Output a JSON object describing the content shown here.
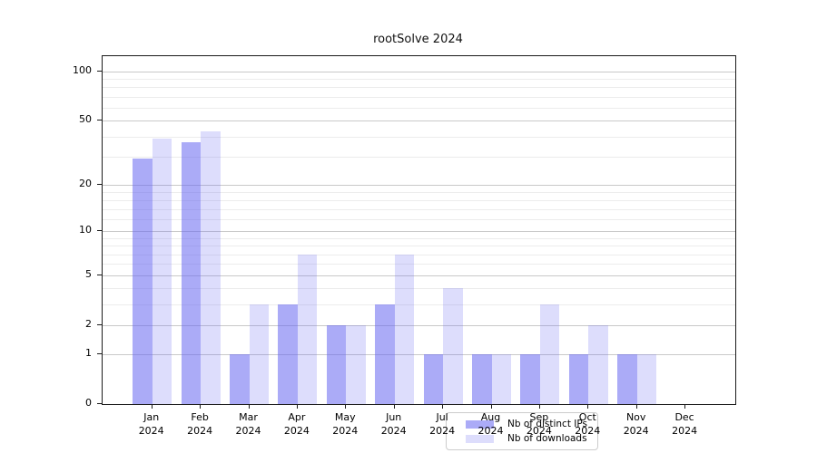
{
  "title": "rootSolve 2024",
  "chart_data": {
    "type": "bar",
    "title": "rootSolve 2024",
    "xlabel": "",
    "ylabel": "",
    "scale": "log1p",
    "grid": true,
    "legend_position": "lower center",
    "categories": [
      "Jan",
      "Feb",
      "Mar",
      "Apr",
      "May",
      "Jun",
      "Jul",
      "Aug",
      "Sep",
      "Oct",
      "Nov",
      "Dec"
    ],
    "year": "2024",
    "series": [
      {
        "name": "Nb of distinct IPs",
        "color": "rgba(102,102,240,0.55)",
        "values": [
          29,
          37,
          1,
          3,
          2,
          3,
          1,
          1,
          1,
          1,
          1,
          0
        ]
      },
      {
        "name": "Nb of downloads",
        "color": "rgba(102,102,240,0.22)",
        "values": [
          39,
          43,
          3,
          7,
          2,
          7,
          4,
          1,
          3,
          2,
          1,
          0
        ]
      }
    ],
    "yticks": [
      0,
      1,
      2,
      5,
      10,
      20,
      50,
      100
    ],
    "minor_gridlines": [
      3,
      4,
      6,
      7,
      8,
      9,
      12,
      14,
      16,
      18,
      30,
      40,
      60,
      70,
      80,
      90
    ],
    "ylim": [
      0,
      124
    ],
    "colors": {
      "grid_major": "#c9c9c9",
      "grid_minor": "#ececec",
      "axis": "#1a1a1a",
      "text": "#000000",
      "legend_border": "#cccccc",
      "legend_bg": "rgba(255,255,255,0.85)"
    }
  }
}
